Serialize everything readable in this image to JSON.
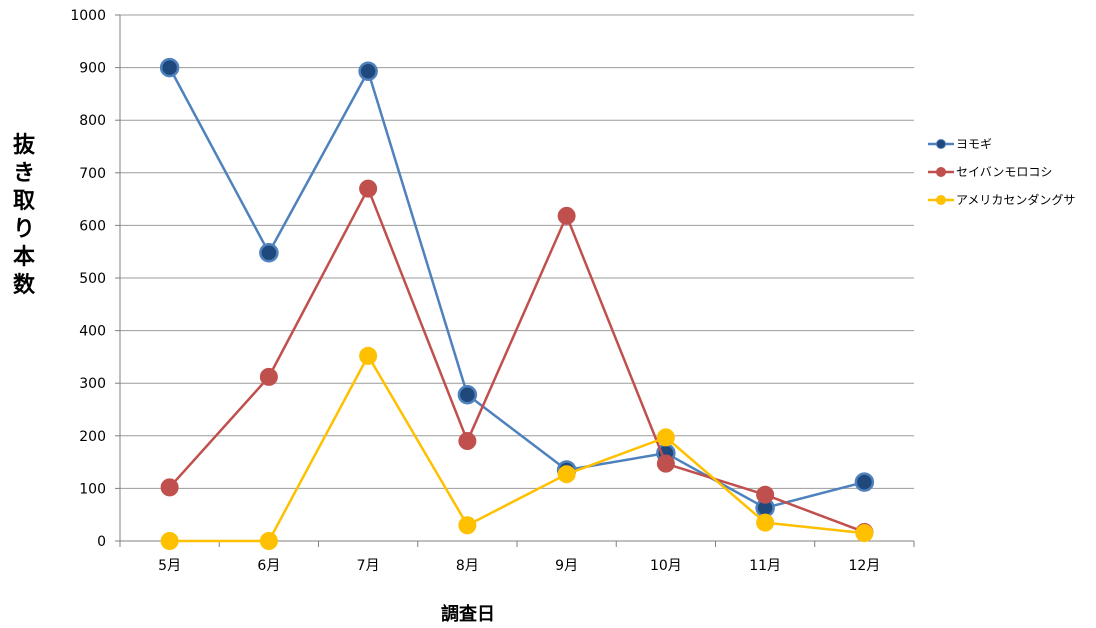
{
  "chart_data": {
    "type": "line",
    "title": "",
    "xlabel": "調査日",
    "ylabel": "抜き取り本数",
    "categories": [
      "5月",
      "6月",
      "7月",
      "8月",
      "9月",
      "10月",
      "11月",
      "12月"
    ],
    "ylim": [
      0,
      1000
    ],
    "yticks": [
      0,
      100,
      200,
      300,
      400,
      500,
      600,
      700,
      800,
      900,
      1000
    ],
    "grid": true,
    "legend_position": "right",
    "series": [
      {
        "name": "ヨモギ",
        "color": "#4F81BD",
        "marker_color": "#1F497D",
        "values": [
          900,
          548,
          893,
          278,
          135,
          167,
          63,
          112
        ]
      },
      {
        "name": "セイバンモロコシ",
        "color": "#C0504D",
        "marker_color": "#C0504D",
        "values": [
          102,
          312,
          670,
          190,
          618,
          147,
          88,
          17
        ]
      },
      {
        "name": "アメリカセンダングサ",
        "color": "#FFC000",
        "marker_color": "#FFC000",
        "values": [
          0,
          0,
          352,
          30,
          127,
          197,
          35,
          15
        ]
      }
    ]
  }
}
